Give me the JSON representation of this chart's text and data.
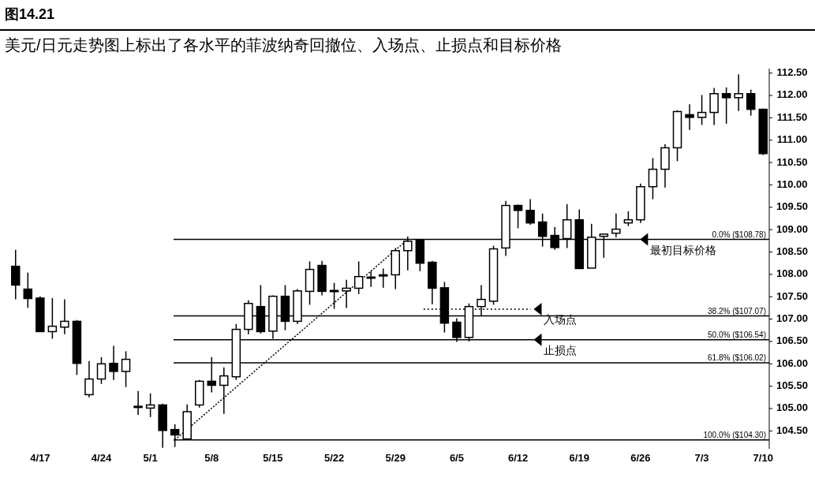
{
  "chart_data": {
    "type": "candlestick",
    "title": "图14.21",
    "subtitle": "美元/日元走势图上标出了各水平的菲波纳奇回撤位、入场点、止损点和目标价格",
    "categories": [
      null,
      null,
      "4/17",
      null,
      null,
      null,
      null,
      "4/24",
      null,
      null,
      null,
      "5/1",
      null,
      null,
      null,
      null,
      "5/8",
      null,
      null,
      null,
      null,
      "5/15",
      null,
      null,
      null,
      null,
      "5/22",
      null,
      null,
      null,
      null,
      "5/29",
      null,
      null,
      null,
      null,
      "6/5",
      null,
      null,
      null,
      null,
      "6/12",
      null,
      null,
      null,
      null,
      "6/19",
      null,
      null,
      null,
      null,
      "6/26",
      null,
      null,
      null,
      null,
      "7/3",
      null,
      null,
      null,
      null,
      "7/10"
    ],
    "ohlc": [
      [
        108.18,
        108.55,
        107.44,
        107.76
      ],
      [
        107.67,
        108.04,
        107.25,
        107.46
      ],
      [
        107.47,
        107.51,
        106.72,
        106.72
      ],
      [
        106.72,
        107.47,
        106.56,
        106.84
      ],
      [
        106.82,
        107.44,
        106.66,
        106.95
      ],
      [
        106.95,
        106.98,
        105.75,
        106.01
      ],
      [
        105.31,
        106.06,
        105.25,
        105.66
      ],
      [
        105.66,
        106.15,
        105.55,
        106.0
      ],
      [
        106.01,
        106.4,
        105.64,
        105.83
      ],
      [
        105.83,
        106.28,
        105.48,
        106.1
      ],
      [
        105.04,
        105.39,
        104.86,
        105.05
      ],
      [
        105.01,
        105.34,
        104.81,
        105.08
      ],
      [
        105.08,
        105.11,
        104.12,
        104.51
      ],
      [
        104.53,
        104.65,
        104.14,
        104.41
      ],
      [
        104.32,
        105.09,
        104.3,
        104.93
      ],
      [
        105.08,
        105.64,
        105.02,
        105.61
      ],
      [
        105.61,
        106.15,
        105.36,
        105.52
      ],
      [
        105.52,
        105.92,
        104.88,
        105.73
      ],
      [
        105.71,
        106.89,
        105.64,
        106.77
      ],
      [
        106.77,
        107.42,
        106.66,
        107.35
      ],
      [
        107.28,
        107.76,
        106.68,
        106.72
      ],
      [
        106.73,
        107.53,
        106.56,
        107.51
      ],
      [
        107.51,
        107.76,
        106.75,
        106.95
      ],
      [
        106.95,
        107.67,
        106.89,
        107.63
      ],
      [
        107.62,
        108.29,
        107.32,
        108.11
      ],
      [
        108.2,
        108.3,
        107.53,
        107.62
      ],
      [
        107.62,
        107.81,
        107.23,
        107.64
      ],
      [
        107.63,
        107.88,
        107.25,
        107.69
      ],
      [
        107.69,
        108.29,
        107.56,
        107.95
      ],
      [
        107.92,
        108.07,
        107.72,
        107.94
      ],
      [
        107.97,
        108.13,
        107.7,
        107.99
      ],
      [
        107.99,
        108.59,
        107.67,
        108.53
      ],
      [
        108.53,
        108.85,
        108.09,
        108.74
      ],
      [
        108.76,
        108.78,
        108.07,
        108.25
      ],
      [
        108.27,
        108.3,
        107.33,
        107.69
      ],
      [
        107.7,
        107.83,
        106.7,
        106.91
      ],
      [
        106.93,
        107.02,
        106.49,
        106.59
      ],
      [
        106.59,
        107.35,
        106.5,
        107.28
      ],
      [
        107.28,
        107.76,
        107.07,
        107.44
      ],
      [
        107.4,
        108.64,
        107.32,
        108.57
      ],
      [
        108.59,
        109.64,
        108.41,
        109.54
      ],
      [
        109.54,
        109.56,
        109.03,
        109.43
      ],
      [
        109.43,
        109.68,
        109.11,
        109.15
      ],
      [
        109.17,
        109.36,
        108.62,
        108.85
      ],
      [
        108.87,
        109.06,
        108.55,
        108.6
      ],
      [
        108.8,
        109.57,
        108.59,
        109.22
      ],
      [
        109.22,
        109.45,
        108.13,
        108.13
      ],
      [
        108.14,
        109.13,
        108.14,
        108.83
      ],
      [
        108.85,
        108.9,
        108.37,
        108.9
      ],
      [
        108.92,
        109.36,
        108.83,
        109.01
      ],
      [
        109.15,
        109.41,
        109.08,
        109.22
      ],
      [
        109.22,
        110.03,
        109.15,
        109.96
      ],
      [
        109.96,
        110.6,
        109.68,
        110.35
      ],
      [
        110.35,
        110.91,
        109.94,
        110.83
      ],
      [
        110.83,
        111.67,
        110.53,
        111.64
      ],
      [
        111.57,
        111.8,
        111.23,
        111.51
      ],
      [
        111.51,
        112.01,
        111.34,
        111.62
      ],
      [
        111.62,
        112.17,
        111.34,
        112.04
      ],
      [
        112.04,
        112.18,
        111.37,
        111.95
      ],
      [
        111.95,
        112.47,
        111.65,
        112.04
      ],
      [
        112.04,
        112.13,
        111.55,
        111.69
      ],
      [
        111.69,
        111.71,
        110.67,
        110.7
      ]
    ],
    "color": "#000000",
    "series": [
      {
        "type": "line",
        "line_style": "dotted",
        "color": "#000000",
        "values": [
          null,
          null,
          null,
          null,
          null,
          null,
          null,
          null,
          null,
          null,
          null,
          null,
          null,
          104.3,
          null,
          null,
          null,
          null,
          null,
          null,
          null,
          null,
          null,
          null,
          null,
          null,
          null,
          null,
          null,
          null,
          null,
          null,
          108.78,
          null,
          null,
          null,
          null,
          null,
          null,
          null,
          null,
          null,
          null,
          null,
          null,
          null,
          null,
          null,
          null,
          null,
          null,
          null,
          null,
          null,
          null,
          null,
          null,
          null,
          null,
          null,
          null,
          null
        ]
      }
    ],
    "ylim": [
      104.1,
      112.6
    ],
    "yticks": [
      {
        "value": 104.5,
        "label": "104.50"
      },
      {
        "value": 105,
        "label": "105.00"
      },
      {
        "value": 105.5,
        "label": "105.50"
      },
      {
        "value": 106,
        "label": "106.00"
      },
      {
        "value": 106.5,
        "label": "106.50"
      },
      {
        "value": 107,
        "label": "107.00"
      },
      {
        "value": 107.5,
        "label": "107.50"
      },
      {
        "value": 108,
        "label": "108.00"
      },
      {
        "value": 108.5,
        "label": "108.50"
      },
      {
        "value": 109,
        "label": "109.00"
      },
      {
        "value": 109.5,
        "label": "109.50"
      },
      {
        "value": 110,
        "label": "110.00"
      },
      {
        "value": 110.5,
        "label": "110.50"
      },
      {
        "value": 111,
        "label": "111.00"
      },
      {
        "value": 111.5,
        "label": "111.50"
      },
      {
        "value": 112,
        "label": "112.00"
      },
      {
        "value": 112.5,
        "label": "112.50"
      }
    ],
    "ref_lines": [
      {
        "axis": "y",
        "value": 108.78,
        "label": "0.0% ($108.78)"
      },
      {
        "axis": "y",
        "value": 107.07,
        "label": "38.2% ($107.07)"
      },
      {
        "axis": "y",
        "value": 106.54,
        "label": "50.0% ($106.54)"
      },
      {
        "axis": "y",
        "value": 106.02,
        "label": "61.8% ($106.02)"
      },
      {
        "axis": "y",
        "value": 104.3,
        "label": "100.0% ($104.30)"
      },
      {
        "axis": "y",
        "value": 107.22,
        "label": "入场点",
        "line_style": "dotted"
      }
    ],
    "annotations": [
      {
        "text": "最初目标价格",
        "y": 108.78
      },
      {
        "text": "止损点",
        "y": 106.54
      }
    ]
  }
}
